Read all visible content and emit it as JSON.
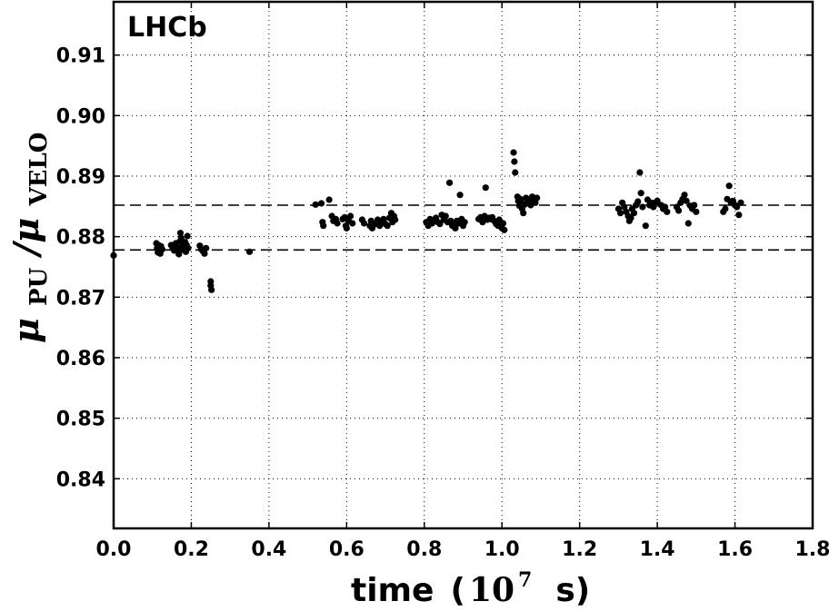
{
  "chart_data": {
    "type": "scatter",
    "annotation": "LHCb",
    "xlabel_word": "time",
    "xlabel_open": "(",
    "xlabel_base": "10",
    "xlabel_exp": "7",
    "xlabel_unit": "s)",
    "ylabel_main": "μ",
    "ylabel_sub1": "PU",
    "ylabel_sep": "/μ",
    "ylabel_sub2": "VELO",
    "xlim": [
      0.0,
      1.8
    ],
    "ylim": [
      0.8318,
      0.9188
    ],
    "x_ticks": [
      0.0,
      0.2,
      0.4,
      0.6,
      0.8,
      1.0,
      1.2,
      1.4,
      1.6,
      1.8
    ],
    "x_tick_labels": [
      "0.0",
      "0.2",
      "0.4",
      "0.6",
      "0.8",
      "1.0",
      "1.2",
      "1.4",
      "1.6",
      "1.8"
    ],
    "y_ticks": [
      0.84,
      0.85,
      0.86,
      0.87,
      0.88,
      0.89,
      0.9,
      0.91
    ],
    "y_tick_labels": [
      "0.84",
      "0.85",
      "0.86",
      "0.87",
      "0.88",
      "0.89",
      "0.90",
      "0.91"
    ],
    "grid": true,
    "reference_lines_y": [
      0.8852,
      0.8778
    ],
    "marker_color": "#000000",
    "points": [
      {
        "x": 0.0,
        "y": 0.8769
      },
      {
        "x": 0.11,
        "y": 0.8789
      },
      {
        "x": 0.112,
        "y": 0.8781
      },
      {
        "x": 0.114,
        "y": 0.8774
      },
      {
        "x": 0.116,
        "y": 0.8786
      },
      {
        "x": 0.118,
        "y": 0.8778
      },
      {
        "x": 0.12,
        "y": 0.8772
      },
      {
        "x": 0.122,
        "y": 0.8784
      },
      {
        "x": 0.125,
        "y": 0.8779
      },
      {
        "x": 0.148,
        "y": 0.8786
      },
      {
        "x": 0.152,
        "y": 0.8781
      },
      {
        "x": 0.156,
        "y": 0.8777
      },
      {
        "x": 0.16,
        "y": 0.8789
      },
      {
        "x": 0.162,
        "y": 0.8783
      },
      {
        "x": 0.165,
        "y": 0.8777
      },
      {
        "x": 0.168,
        "y": 0.8771
      },
      {
        "x": 0.17,
        "y": 0.8792
      },
      {
        "x": 0.172,
        "y": 0.8806
      },
      {
        "x": 0.174,
        "y": 0.8798
      },
      {
        "x": 0.176,
        "y": 0.8783
      },
      {
        "x": 0.178,
        "y": 0.8788
      },
      {
        "x": 0.18,
        "y": 0.8778
      },
      {
        "x": 0.182,
        "y": 0.8783
      },
      {
        "x": 0.184,
        "y": 0.8791
      },
      {
        "x": 0.186,
        "y": 0.8775
      },
      {
        "x": 0.188,
        "y": 0.8786
      },
      {
        "x": 0.19,
        "y": 0.8801
      },
      {
        "x": 0.192,
        "y": 0.8781
      },
      {
        "x": 0.222,
        "y": 0.8785
      },
      {
        "x": 0.226,
        "y": 0.8779
      },
      {
        "x": 0.23,
        "y": 0.8776
      },
      {
        "x": 0.234,
        "y": 0.8772
      },
      {
        "x": 0.238,
        "y": 0.8781
      },
      {
        "x": 0.25,
        "y": 0.8726
      },
      {
        "x": 0.25,
        "y": 0.8719
      },
      {
        "x": 0.252,
        "y": 0.8712
      },
      {
        "x": 0.35,
        "y": 0.8775
      },
      {
        "x": 0.52,
        "y": 0.8853
      },
      {
        "x": 0.535,
        "y": 0.8855
      },
      {
        "x": 0.538,
        "y": 0.8824
      },
      {
        "x": 0.54,
        "y": 0.8818
      },
      {
        "x": 0.555,
        "y": 0.8861
      },
      {
        "x": 0.562,
        "y": 0.8834
      },
      {
        "x": 0.566,
        "y": 0.8826
      },
      {
        "x": 0.572,
        "y": 0.8829
      },
      {
        "x": 0.576,
        "y": 0.8822
      },
      {
        "x": 0.59,
        "y": 0.8829
      },
      {
        "x": 0.595,
        "y": 0.8832
      },
      {
        "x": 0.598,
        "y": 0.8818
      },
      {
        "x": 0.6,
        "y": 0.8814
      },
      {
        "x": 0.605,
        "y": 0.8826
      },
      {
        "x": 0.61,
        "y": 0.8834
      },
      {
        "x": 0.615,
        "y": 0.8822
      },
      {
        "x": 0.64,
        "y": 0.8828
      },
      {
        "x": 0.645,
        "y": 0.8822
      },
      {
        "x": 0.66,
        "y": 0.8818
      },
      {
        "x": 0.663,
        "y": 0.8826
      },
      {
        "x": 0.666,
        "y": 0.8814
      },
      {
        "x": 0.675,
        "y": 0.8821
      },
      {
        "x": 0.68,
        "y": 0.8828
      },
      {
        "x": 0.685,
        "y": 0.8818
      },
      {
        "x": 0.69,
        "y": 0.8824
      },
      {
        "x": 0.695,
        "y": 0.8829
      },
      {
        "x": 0.7,
        "y": 0.8821
      },
      {
        "x": 0.705,
        "y": 0.8818
      },
      {
        "x": 0.71,
        "y": 0.8831
      },
      {
        "x": 0.715,
        "y": 0.8839
      },
      {
        "x": 0.718,
        "y": 0.8824
      },
      {
        "x": 0.722,
        "y": 0.8834
      },
      {
        "x": 0.725,
        "y": 0.8828
      },
      {
        "x": 0.805,
        "y": 0.8824
      },
      {
        "x": 0.81,
        "y": 0.8818
      },
      {
        "x": 0.815,
        "y": 0.8829
      },
      {
        "x": 0.82,
        "y": 0.8822
      },
      {
        "x": 0.825,
        "y": 0.8826
      },
      {
        "x": 0.83,
        "y": 0.8831
      },
      {
        "x": 0.835,
        "y": 0.8824
      },
      {
        "x": 0.84,
        "y": 0.8821
      },
      {
        "x": 0.845,
        "y": 0.8836
      },
      {
        "x": 0.85,
        "y": 0.8828
      },
      {
        "x": 0.855,
        "y": 0.8834
      },
      {
        "x": 0.86,
        "y": 0.8824
      },
      {
        "x": 0.865,
        "y": 0.8889
      },
      {
        "x": 0.868,
        "y": 0.8826
      },
      {
        "x": 0.872,
        "y": 0.8818
      },
      {
        "x": 0.876,
        "y": 0.8821
      },
      {
        "x": 0.88,
        "y": 0.8814
      },
      {
        "x": 0.884,
        "y": 0.8826
      },
      {
        "x": 0.888,
        "y": 0.8822
      },
      {
        "x": 0.892,
        "y": 0.8869
      },
      {
        "x": 0.896,
        "y": 0.8829
      },
      {
        "x": 0.9,
        "y": 0.8818
      },
      {
        "x": 0.904,
        "y": 0.8824
      },
      {
        "x": 0.94,
        "y": 0.8829
      },
      {
        "x": 0.945,
        "y": 0.8832
      },
      {
        "x": 0.95,
        "y": 0.8824
      },
      {
        "x": 0.955,
        "y": 0.8834
      },
      {
        "x": 0.958,
        "y": 0.8881
      },
      {
        "x": 0.962,
        "y": 0.8828
      },
      {
        "x": 0.966,
        "y": 0.8831
      },
      {
        "x": 0.97,
        "y": 0.8829
      },
      {
        "x": 0.975,
        "y": 0.8832
      },
      {
        "x": 0.98,
        "y": 0.8826
      },
      {
        "x": 0.985,
        "y": 0.8821
      },
      {
        "x": 0.99,
        "y": 0.8818
      },
      {
        "x": 0.993,
        "y": 0.8828
      },
      {
        "x": 0.996,
        "y": 0.8824
      },
      {
        "x": 1.0,
        "y": 0.8814
      },
      {
        "x": 1.003,
        "y": 0.8822
      },
      {
        "x": 1.006,
        "y": 0.8811
      },
      {
        "x": 1.03,
        "y": 0.8939
      },
      {
        "x": 1.032,
        "y": 0.8924
      },
      {
        "x": 1.034,
        "y": 0.8906
      },
      {
        "x": 1.04,
        "y": 0.8866
      },
      {
        "x": 1.042,
        "y": 0.8859
      },
      {
        "x": 1.045,
        "y": 0.8851
      },
      {
        "x": 1.048,
        "y": 0.8862
      },
      {
        "x": 1.05,
        "y": 0.8856
      },
      {
        "x": 1.052,
        "y": 0.8846
      },
      {
        "x": 1.055,
        "y": 0.8839
      },
      {
        "x": 1.058,
        "y": 0.8853
      },
      {
        "x": 1.062,
        "y": 0.8864
      },
      {
        "x": 1.066,
        "y": 0.8858
      },
      {
        "x": 1.07,
        "y": 0.8861
      },
      {
        "x": 1.074,
        "y": 0.8852
      },
      {
        "x": 1.078,
        "y": 0.8866
      },
      {
        "x": 1.082,
        "y": 0.8859
      },
      {
        "x": 1.086,
        "y": 0.8856
      },
      {
        "x": 1.09,
        "y": 0.8864
      },
      {
        "x": 1.3,
        "y": 0.8846
      },
      {
        "x": 1.305,
        "y": 0.8839
      },
      {
        "x": 1.31,
        "y": 0.8856
      },
      {
        "x": 1.315,
        "y": 0.8849
      },
      {
        "x": 1.32,
        "y": 0.8841
      },
      {
        "x": 1.325,
        "y": 0.8834
      },
      {
        "x": 1.328,
        "y": 0.8826
      },
      {
        "x": 1.332,
        "y": 0.8831
      },
      {
        "x": 1.335,
        "y": 0.8846
      },
      {
        "x": 1.34,
        "y": 0.8839
      },
      {
        "x": 1.345,
        "y": 0.8852
      },
      {
        "x": 1.35,
        "y": 0.8858
      },
      {
        "x": 1.355,
        "y": 0.8906
      },
      {
        "x": 1.358,
        "y": 0.8872
      },
      {
        "x": 1.362,
        "y": 0.8849
      },
      {
        "x": 1.37,
        "y": 0.8818
      },
      {
        "x": 1.375,
        "y": 0.8861
      },
      {
        "x": 1.38,
        "y": 0.8852
      },
      {
        "x": 1.385,
        "y": 0.8856
      },
      {
        "x": 1.39,
        "y": 0.8849
      },
      {
        "x": 1.395,
        "y": 0.8856
      },
      {
        "x": 1.4,
        "y": 0.8859
      },
      {
        "x": 1.41,
        "y": 0.8852
      },
      {
        "x": 1.415,
        "y": 0.8846
      },
      {
        "x": 1.42,
        "y": 0.8849
      },
      {
        "x": 1.425,
        "y": 0.8841
      },
      {
        "x": 1.45,
        "y": 0.8849
      },
      {
        "x": 1.455,
        "y": 0.8843
      },
      {
        "x": 1.46,
        "y": 0.8856
      },
      {
        "x": 1.465,
        "y": 0.8862
      },
      {
        "x": 1.47,
        "y": 0.8869
      },
      {
        "x": 1.475,
        "y": 0.8859
      },
      {
        "x": 1.48,
        "y": 0.8822
      },
      {
        "x": 1.485,
        "y": 0.8851
      },
      {
        "x": 1.49,
        "y": 0.8846
      },
      {
        "x": 1.495,
        "y": 0.8852
      },
      {
        "x": 1.5,
        "y": 0.8841
      },
      {
        "x": 1.57,
        "y": 0.8841
      },
      {
        "x": 1.575,
        "y": 0.8846
      },
      {
        "x": 1.58,
        "y": 0.8862
      },
      {
        "x": 1.585,
        "y": 0.8884
      },
      {
        "x": 1.59,
        "y": 0.8856
      },
      {
        "x": 1.595,
        "y": 0.8859
      },
      {
        "x": 1.6,
        "y": 0.8852
      },
      {
        "x": 1.605,
        "y": 0.8849
      },
      {
        "x": 1.61,
        "y": 0.8836
      },
      {
        "x": 1.615,
        "y": 0.8856
      }
    ]
  }
}
